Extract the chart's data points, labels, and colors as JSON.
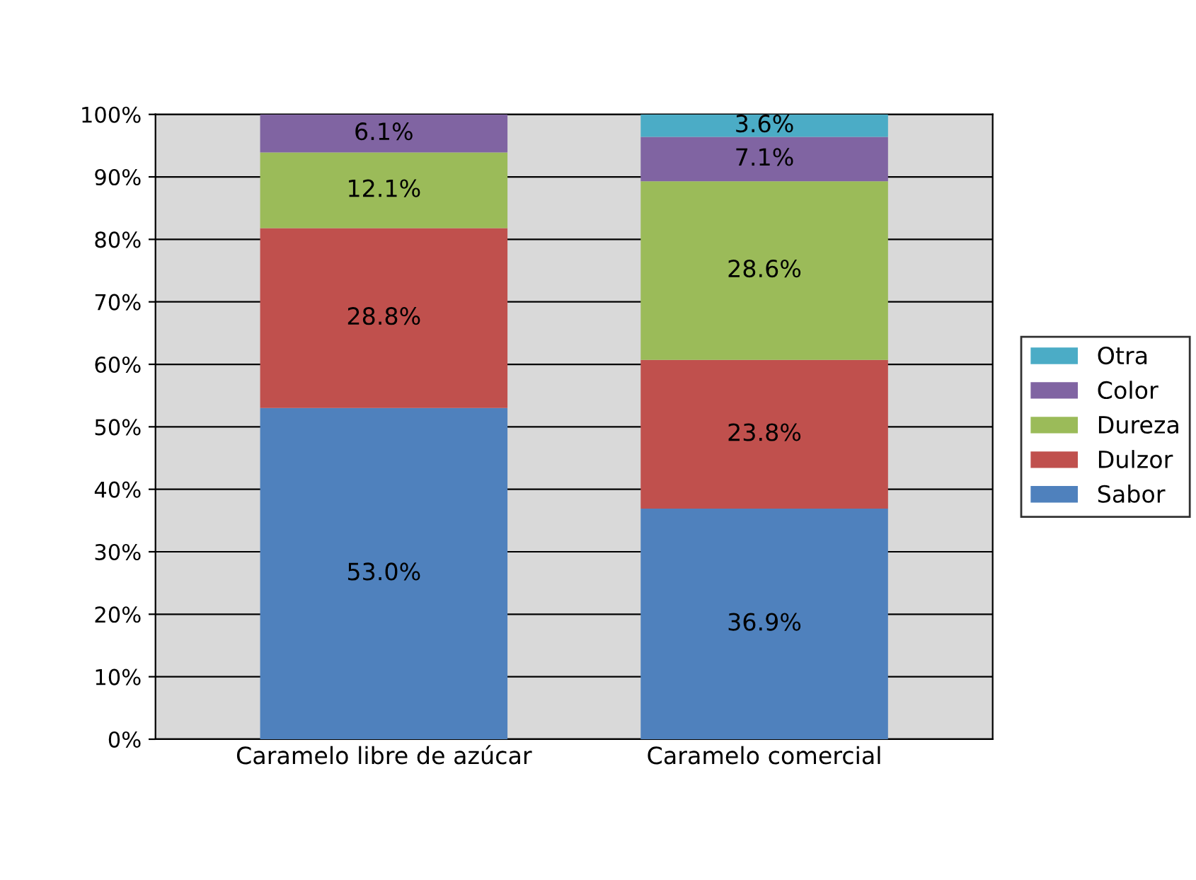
{
  "chart_data": {
    "type": "bar",
    "stacked": true,
    "categories": [
      "Caramelo libre de azúcar",
      "Caramelo comercial"
    ],
    "series": [
      {
        "name": "Sabor",
        "color": "#4f81bd",
        "values": [
          53.0,
          36.9
        ],
        "value_labels": [
          "53.0%",
          "36.9%"
        ]
      },
      {
        "name": "Dulzor",
        "color": "#c0504d",
        "values": [
          28.8,
          23.8
        ],
        "value_labels": [
          "28.8%",
          "23.8%"
        ]
      },
      {
        "name": "Dureza",
        "color": "#9bbb59",
        "values": [
          12.1,
          28.6
        ],
        "value_labels": [
          "12.1%",
          "28.6%"
        ]
      },
      {
        "name": "Color",
        "color": "#8064a2",
        "values": [
          6.1,
          7.1
        ],
        "value_labels": [
          "6.1%",
          "7.1%"
        ]
      },
      {
        "name": "Otra",
        "color": "#4bacc6",
        "values": [
          0,
          3.6
        ],
        "value_labels": [
          null,
          "3.6%"
        ]
      }
    ],
    "ylim": [
      0,
      100
    ],
    "yticks": [
      {
        "value": 0,
        "label": "0%"
      },
      {
        "value": 10,
        "label": "10%"
      },
      {
        "value": 20,
        "label": "20%"
      },
      {
        "value": 30,
        "label": "30%"
      },
      {
        "value": 40,
        "label": "40%"
      },
      {
        "value": 50,
        "label": "50%"
      },
      {
        "value": 60,
        "label": "60%"
      },
      {
        "value": 70,
        "label": "70%"
      },
      {
        "value": 80,
        "label": "80%"
      },
      {
        "value": 90,
        "label": "90%"
      },
      {
        "value": 100,
        "label": "100%"
      }
    ],
    "grid": "y",
    "legend": "right"
  }
}
